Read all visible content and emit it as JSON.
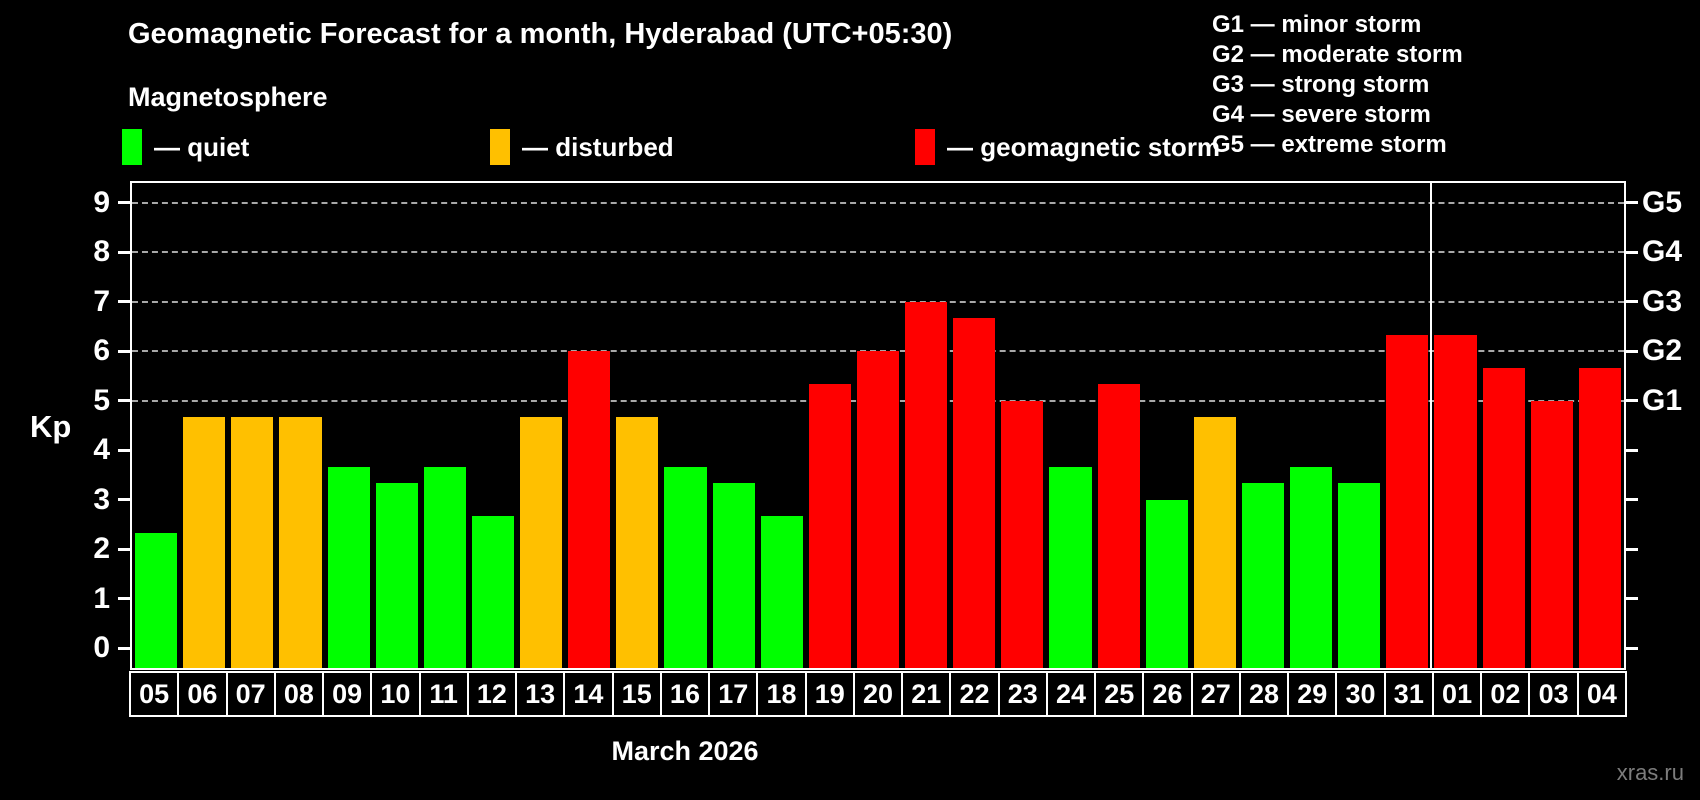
{
  "header": {
    "title": "Geomagnetic Forecast for a month, Hyderabad (UTC+05:30)",
    "subtitle": "Magnetosphere"
  },
  "legend": {
    "items": [
      {
        "key": "quiet",
        "label": "— quiet"
      },
      {
        "key": "disturbed",
        "label": "— disturbed"
      },
      {
        "key": "storm",
        "label": "— geomagnetic storm"
      }
    ]
  },
  "g_scale_legend": {
    "lines": [
      "G1 — minor storm",
      "G2 — moderate storm",
      "G3 — strong storm",
      "G4 — severe storm",
      "G5 — extreme storm"
    ]
  },
  "colors": {
    "quiet": "#00ff00",
    "disturbed": "#ffc000",
    "storm": "#ff0000",
    "background": "#000000",
    "grid": "#a8a8a8",
    "axis": "#ffffff",
    "watermark": "#7c7c7c"
  },
  "chart_data": {
    "type": "bar",
    "title": "Geomagnetic Forecast for a month, Hyderabad (UTC+05:30)",
    "xlabel": "March 2026",
    "ylabel": "Kp",
    "ylim": [
      -0.4,
      9.4
    ],
    "yticks": [
      0,
      1,
      2,
      3,
      4,
      5,
      6,
      7,
      8,
      9
    ],
    "grid": "horizontal dashed lines at Kp 5..9 only",
    "gridlines_at": [
      5,
      6,
      7,
      8,
      9
    ],
    "right_axis": [
      {
        "kp": 5,
        "label": "G1"
      },
      {
        "kp": 6,
        "label": "G2"
      },
      {
        "kp": 7,
        "label": "G3"
      },
      {
        "kp": 8,
        "label": "G4"
      },
      {
        "kp": 9,
        "label": "G5"
      }
    ],
    "legend_position": "top",
    "month_separator_after_index": 26,
    "categories": [
      "05",
      "06",
      "07",
      "08",
      "09",
      "10",
      "11",
      "12",
      "13",
      "14",
      "15",
      "16",
      "17",
      "18",
      "19",
      "20",
      "21",
      "22",
      "23",
      "24",
      "25",
      "26",
      "27",
      "28",
      "29",
      "30",
      "31",
      "01",
      "02",
      "03",
      "04"
    ],
    "series": [
      {
        "name": "Kp forecast",
        "values": [
          2.33,
          4.67,
          4.67,
          4.67,
          3.67,
          3.33,
          3.67,
          2.67,
          4.67,
          6,
          4.67,
          3.67,
          3.33,
          2.67,
          5.33,
          6,
          7,
          6.67,
          5,
          3.67,
          5.33,
          3,
          4.67,
          3.33,
          3.67,
          3.33,
          6.33,
          6.33,
          5.67,
          5,
          5.67
        ],
        "statuses": [
          "quiet",
          "disturbed",
          "disturbed",
          "disturbed",
          "quiet",
          "quiet",
          "quiet",
          "quiet",
          "disturbed",
          "storm",
          "disturbed",
          "quiet",
          "quiet",
          "quiet",
          "storm",
          "storm",
          "storm",
          "storm",
          "storm",
          "quiet",
          "storm",
          "quiet",
          "disturbed",
          "quiet",
          "quiet",
          "quiet",
          "storm",
          "storm",
          "storm",
          "storm",
          "storm"
        ]
      }
    ]
  },
  "footer": {
    "xlabel": "March 2026",
    "watermark": "xras.ru"
  },
  "axis": {
    "kp_label": "Kp"
  }
}
